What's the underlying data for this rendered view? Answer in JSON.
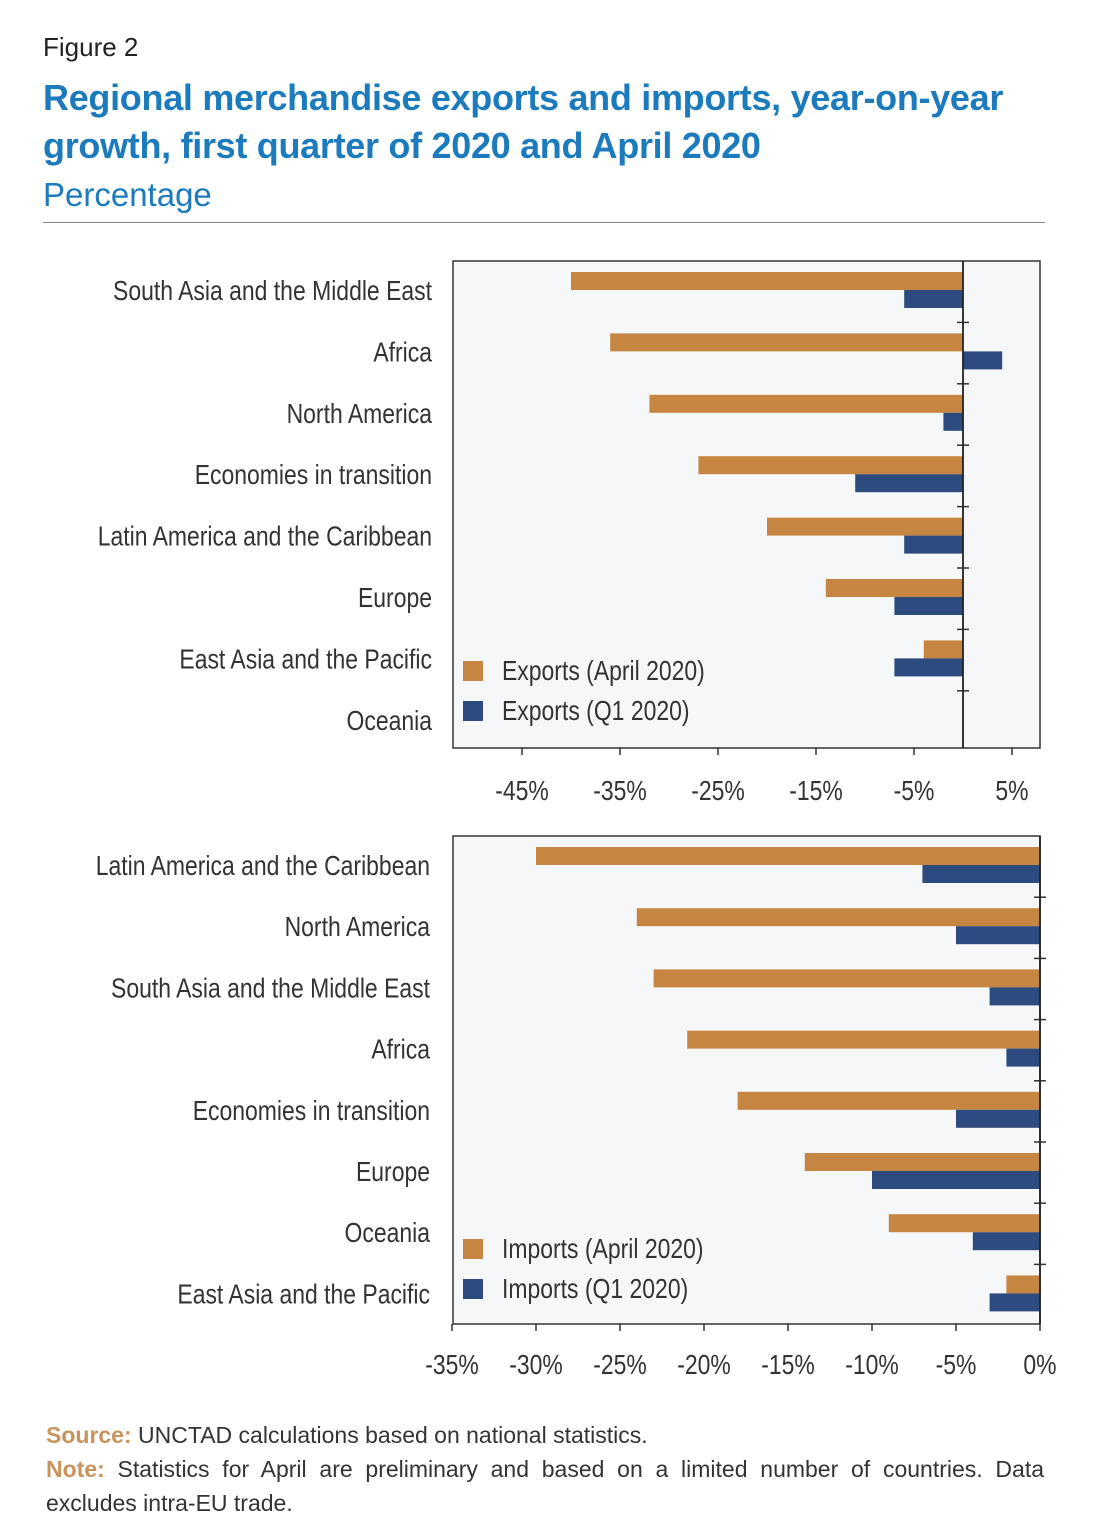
{
  "figure_label": "Figure 2",
  "title": "Regional merchandise exports and imports, year-on-year growth, first quarter of 2020 and April 2020",
  "subtitle": "Percentage",
  "colors": {
    "april": "#c68642",
    "q1": "#2d4b7e",
    "panel_bg": "#f6f7f9",
    "title": "#1b7bbd"
  },
  "chart_data": [
    {
      "type": "bar",
      "orientation": "horizontal",
      "categories": [
        "South Asia and the Middle East",
        "Africa",
        "North America",
        "Economies in transition",
        "Latin America and the Caribbean",
        "Europe",
        "East Asia and the Pacific",
        "Oceania"
      ],
      "series": [
        {
          "name": "Exports (April 2020)",
          "values": [
            -40,
            -36,
            -32,
            -27,
            -20,
            -14,
            -4,
            0
          ]
        },
        {
          "name": "Exports (Q1 2020)",
          "values": [
            -6,
            4,
            -2,
            -11,
            -6,
            -7,
            -7,
            0
          ]
        }
      ],
      "xlim": [
        -52,
        8
      ],
      "xticks": [
        -45,
        -35,
        -25,
        -15,
        -5,
        5
      ],
      "xtick_labels": [
        "-45%",
        "-35%",
        "-25%",
        "-15%",
        "-5%",
        "5%"
      ],
      "legend": "bottom-left"
    },
    {
      "type": "bar",
      "orientation": "horizontal",
      "categories": [
        "Latin America and the Caribbean",
        "North America",
        "South Asia and the Middle East",
        "Africa",
        "Economies in transition",
        "Europe",
        "Oceania",
        "East Asia and the Pacific"
      ],
      "series": [
        {
          "name": "Imports (April 2020)",
          "values": [
            -30,
            -24,
            -23,
            -21,
            -18,
            -14,
            -9,
            -2
          ]
        },
        {
          "name": "Imports (Q1 2020)",
          "values": [
            -7,
            -5,
            -3,
            -2,
            -5,
            -10,
            -4,
            -3
          ]
        }
      ],
      "xlim": [
        -35,
        0
      ],
      "xticks": [
        -35,
        -30,
        -25,
        -20,
        -15,
        -10,
        -5,
        0
      ],
      "xtick_labels": [
        "-35%",
        "-30%",
        "-25%",
        "-20%",
        "-15%",
        "-10%",
        "-5%",
        "0%"
      ],
      "legend": "bottom-left"
    }
  ],
  "footer": {
    "source_key": "Source:",
    "source_text": " UNCTAD calculations based on national statistics.",
    "note_key": "Note:",
    "note_text": " Statistics for April are preliminary and based on a limited number of countries. Data excludes intra-EU trade."
  }
}
